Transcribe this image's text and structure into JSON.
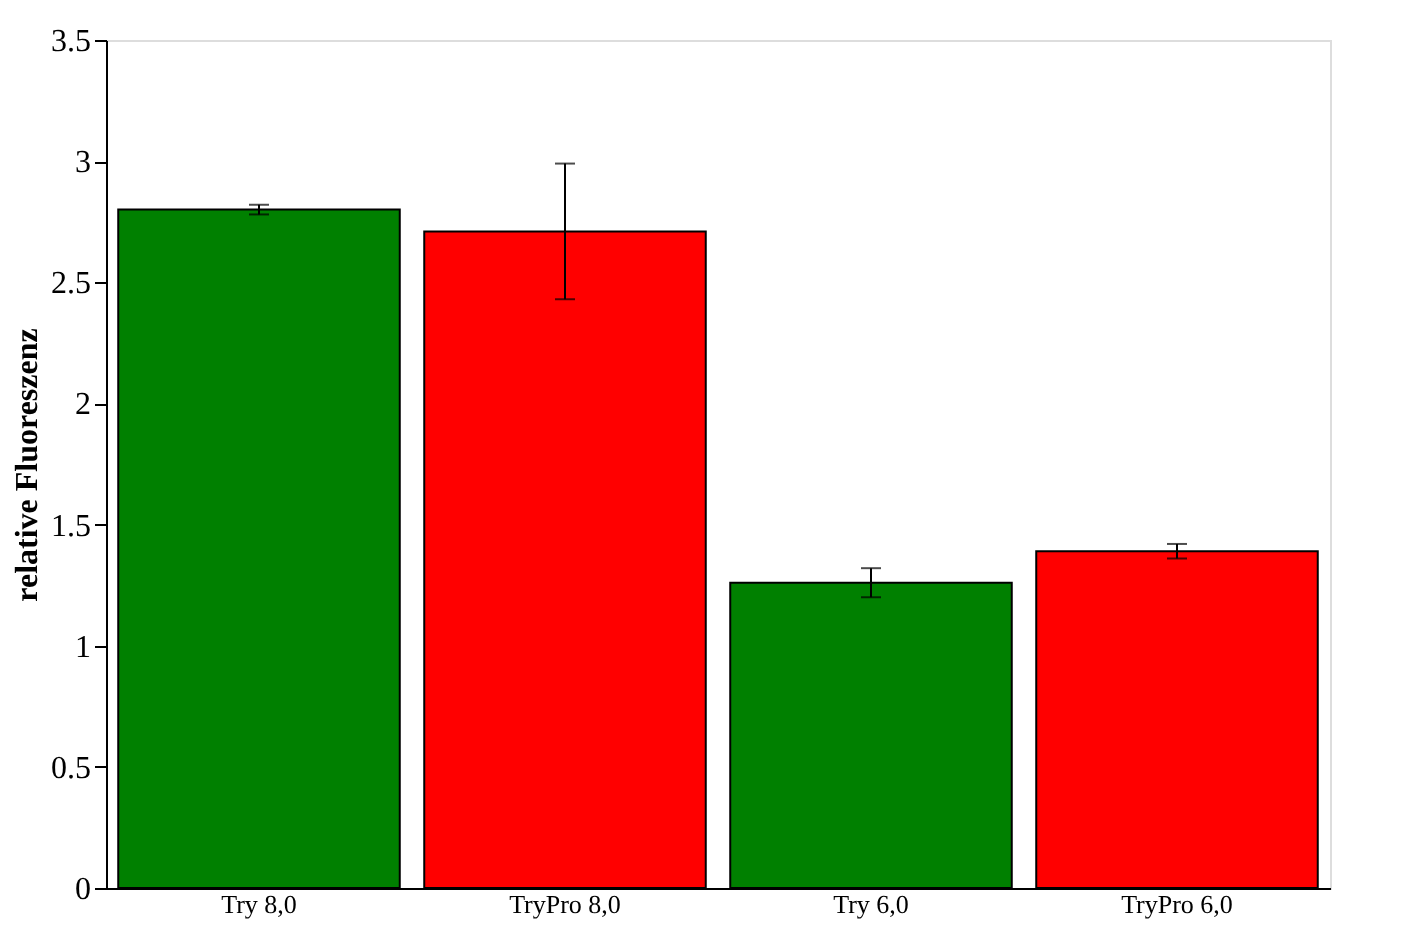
{
  "chart_data": {
    "type": "bar",
    "ylabel": "relative Fluoreszenz",
    "categories": [
      "Try 8,0",
      "TryPro 8,0",
      "Try 6,0",
      "TryPro 6,0"
    ],
    "values": [
      2.8,
      2.71,
      1.26,
      1.39
    ],
    "errors": [
      0.02,
      0.28,
      0.06,
      0.03
    ],
    "colors": [
      "#008000",
      "#ff0000",
      "#008000",
      "#ff0000"
    ],
    "ylim": [
      0,
      3.5
    ],
    "yticks": [
      0,
      0.5,
      1,
      1.5,
      2,
      2.5,
      3,
      3.5
    ],
    "grid": false
  }
}
